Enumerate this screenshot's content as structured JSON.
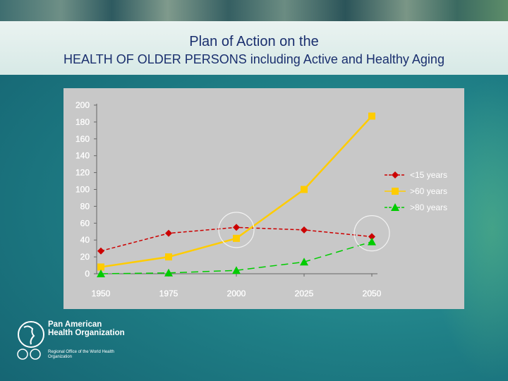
{
  "header": {
    "title_line1": "Plan of Action on the",
    "title_line2": "HEALTH OF OLDER PERSONS including Active and Healthy Aging"
  },
  "logo": {
    "name": "Pan American Health Organization",
    "subtitle": "Regional Office of the World Health Organization"
  },
  "colors": {
    "series_under15": "#cc0000",
    "series_over60": "#ffcc00",
    "series_over80": "#00cc00",
    "plot_bg": "#c8c8c8"
  },
  "chart_data": {
    "type": "line",
    "x": [
      "1950",
      "1975",
      "2000",
      "2025",
      "2050"
    ],
    "ylim": [
      0,
      200
    ],
    "yticks": [
      "200",
      "180",
      "160",
      "140",
      "120",
      "100",
      "80",
      "60",
      "40",
      "20",
      "0"
    ],
    "legend_position": "right",
    "grid": false,
    "series": [
      {
        "name": "<15 years",
        "values": [
          27,
          48,
          55,
          52,
          44
        ],
        "marker": "diamond",
        "line": "dashed",
        "color": "#cc0000"
      },
      {
        "name": ">60 years",
        "values": [
          8,
          20,
          42,
          100,
          187
        ],
        "marker": "square",
        "line": "solid",
        "color": "#ffcc00"
      },
      {
        "name": ">80 years",
        "values": [
          0,
          1,
          4,
          14,
          38
        ],
        "marker": "triangle",
        "line": "dashed",
        "color": "#00cc00"
      }
    ],
    "annotations": [
      {
        "type": "circle",
        "x": "2000",
        "y": 52
      },
      {
        "type": "circle",
        "x": "2050",
        "y": 48
      }
    ]
  }
}
